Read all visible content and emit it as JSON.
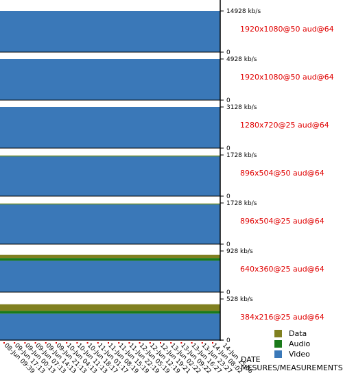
{
  "chart_data": {
    "type": "area",
    "stacked": true,
    "series_names": [
      "Data",
      "Audio",
      "Video"
    ],
    "colors": {
      "Data": "#808020",
      "Audio": "#1a7a1a",
      "Video": "#3a78b8"
    },
    "panels": [
      {
        "label": "1920x1080@50 aud@64",
        "ymax": "14928 kb/s",
        "ymax_value": 14928,
        "ymin": "0",
        "layers": [
          {
            "series": "Video",
            "from": 0,
            "to": 14928
          }
        ]
      },
      {
        "label": "1920x1080@50 aud@64",
        "ymax": "4928 kb/s",
        "ymax_value": 4928,
        "ymin": "0",
        "layers": [
          {
            "series": "Video",
            "from": 0,
            "to": 4928
          }
        ]
      },
      {
        "label": "1280x720@25 aud@64",
        "ymax": "3128 kb/s",
        "ymax_value": 3128,
        "ymin": "0",
        "layers": [
          {
            "series": "Video",
            "from": 0,
            "to": 3128
          }
        ]
      },
      {
        "label": "896x504@50 aud@64",
        "ymax": "1728 kb/s",
        "ymax_value": 1728,
        "ymin": "0",
        "layers": [
          {
            "series": "Video",
            "from": 0,
            "to": 1664
          },
          {
            "series": "Audio",
            "from": 1664,
            "to": 1690
          },
          {
            "series": "Data",
            "from": 1690,
            "to": 1705
          }
        ]
      },
      {
        "label": "896x504@25 aud@64",
        "ymax": "1728 kb/s",
        "ymax_value": 1728,
        "ymin": "0",
        "layers": [
          {
            "series": "Video",
            "from": 0,
            "to": 1664
          },
          {
            "series": "Audio",
            "from": 1664,
            "to": 1690
          },
          {
            "series": "Data",
            "from": 1690,
            "to": 1705
          }
        ]
      },
      {
        "label": "640x360@25 aud@64",
        "ymax": "928 kb/s",
        "ymax_value": 928,
        "ymin": "0",
        "layers": [
          {
            "series": "Video",
            "from": 0,
            "to": 710
          },
          {
            "series": "Audio",
            "from": 710,
            "to": 770
          },
          {
            "series": "Data",
            "from": 770,
            "to": 840
          }
        ]
      },
      {
        "label": "384x216@25 aud@64",
        "ymax": "528 kb/s",
        "ymax_value": 528,
        "ymin": "0",
        "layers": [
          {
            "series": "Video",
            "from": 0,
            "to": 340
          },
          {
            "series": "Audio",
            "from": 340,
            "to": 375
          },
          {
            "series": "Data",
            "from": 375,
            "to": 460
          }
        ]
      }
    ],
    "x_labels": [
      "08-Jun 09:39",
      "09-Jun 17:13",
      "09-Jun 00:13",
      "09-Jun 07:13",
      "09-Jun 14:13",
      "09-Jun 21:13",
      "10-Jun 04:13",
      "10-Jun 11:13",
      "10-Jun 18:17",
      "11-Jun 01:17",
      "11-Jun 08:19",
      "11-Jun 15:19",
      "11-Jun 22:19",
      "12-Jun 05:19",
      "12-Jun 12:19",
      "12-Jun 19:21",
      "13-Jun 02:22",
      "13-Jun 09:22",
      "13-Jun 16:27",
      "13-Jun 23:27",
      "14-Jun 08:02",
      "14-Jun 15:06"
    ],
    "xlabel": "DATE",
    "footer": "MESURES/MEASUREMENTS",
    "legend": [
      {
        "name": "Data",
        "color": "#808020"
      },
      {
        "name": "Audio",
        "color": "#1a7a1a"
      },
      {
        "name": "Video",
        "color": "#3a78b8"
      }
    ]
  }
}
